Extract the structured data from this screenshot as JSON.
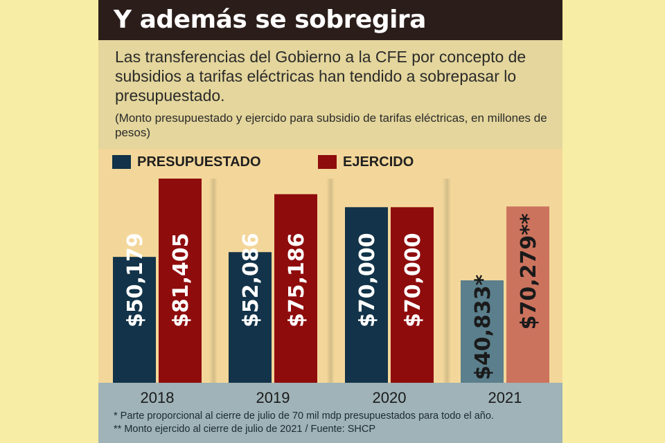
{
  "header": {
    "title": "Y además se sobregira",
    "lead": "Las transferencias del Gobierno a la CFE por concepto de subsidios a tarifas eléctricas han tendido a sobrepasar lo presupuestado.",
    "note": "(Monto presupuestado y ejercido para subsidio de tarifas eléctricas, en millones de pesos)"
  },
  "footnotes": [
    "* Parte proporcional al cierre de julio de 70 mil mdp presupuestados para todo el año.",
    "** Monto ejercido al cierre de julio de 2021 / Fuente: SHCP"
  ],
  "chart_data": {
    "type": "bar",
    "categories": [
      "2018",
      "2019",
      "2020",
      "2021"
    ],
    "series": [
      {
        "name": "PRESUPUESTADO",
        "color": "#123349",
        "values": [
          50179,
          52086,
          70000,
          40833
        ],
        "labels": [
          "$50,179",
          "$52,086",
          "$70,000",
          "$40,833*"
        ]
      },
      {
        "name": "EJERCIDO",
        "color": "#8f0c0d",
        "values": [
          81405,
          75186,
          70000,
          70279
        ],
        "labels": [
          "$81,405",
          "$75,186",
          "$70,000",
          "$70,279**"
        ]
      }
    ],
    "partial_colors": [
      "#5b7f8c",
      "#cc735e"
    ],
    "partial_category": "2021",
    "ylim": [
      0,
      85000
    ],
    "legend_position": "top-left",
    "grid": false
  }
}
